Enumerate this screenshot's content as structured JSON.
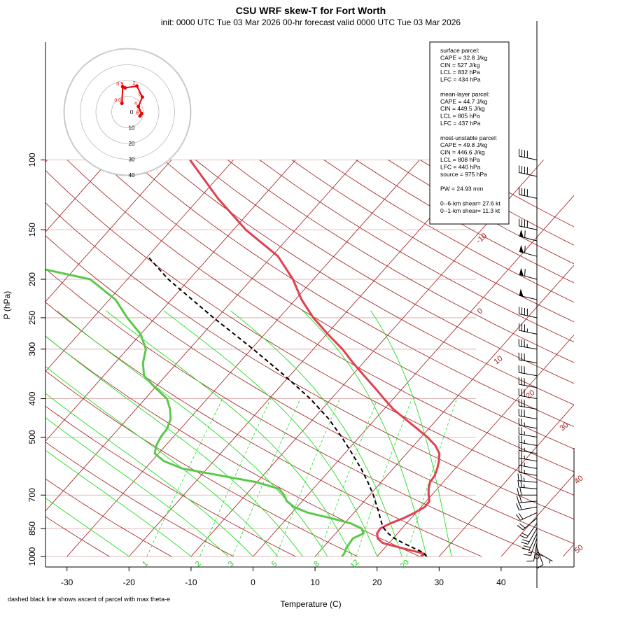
{
  "title": "CSU WRF skew-T for Fort Worth",
  "subtitle": "init: 0000 UTC Tue 03 Mar 2026    00-hr forecast valid 0000 UTC Tue 03 Mar 2026",
  "footnote": "dashed black line shows ascent of parcel with max theta-e",
  "colors": {
    "temperature": "#e0414f",
    "dewpoint": "#5ac94a",
    "parcel": "#000000",
    "isotherm": "#a01818",
    "dry_adiabat": "#a01818",
    "moist_adiabat": "#22dd22",
    "mixing_ratio": "#22dd22",
    "isobar": "#d8a0a0",
    "hodograph": "#ee0000"
  },
  "stats": {
    "surface": {
      "heading": "surface parcel:",
      "lines": [
        "CAPE = 32.8 J/kg",
        "CIN = 527 J/kg",
        "LCL = 832 hPa",
        "LFC = 434 hPa"
      ]
    },
    "mean_layer": {
      "heading": "mean-layer parcel:",
      "lines": [
        "CAPE = 44.7 J/kg",
        "CIN = 449.5 J/kg",
        "LCL = 805 hPa",
        "LFC = 437 hPa"
      ]
    },
    "most_unstable": {
      "heading": "most-unstable parcel:",
      "lines": [
        "CAPE = 49.8 J/kg",
        "CIN = 446.6 J/kg",
        "LCL = 808 hPa",
        "LFC = 440 hPa",
        "source = 975 hPa"
      ]
    },
    "pw": "PW =  24.93 mm",
    "shear": [
      "0--6-km shear= 27.6 kt",
      "0--1-km shear= 11.3 kt"
    ]
  },
  "chart_data": {
    "type": "line",
    "diagram": "skew-T log-p",
    "xlabel": "Temperature (C)",
    "ylabel": "P (hPa)",
    "x_ticks": [
      -30,
      -20,
      -10,
      0,
      10,
      20,
      30,
      40
    ],
    "y_ticks": [
      1000,
      850,
      700,
      500,
      400,
      300,
      250,
      200,
      150,
      100
    ],
    "isotherm_labels": [
      -10,
      0,
      10,
      20,
      30,
      40,
      50
    ],
    "mixing_ratio_labels": [
      1,
      2,
      3,
      5,
      8,
      12,
      20
    ],
    "hodograph": {
      "ring_labels": [
        10,
        20,
        30,
        40
      ],
      "center_label": "0",
      "points": [
        {
          "label": "0.5",
          "u": -3,
          "v": 16
        },
        {
          "label": "1",
          "u": -1.5,
          "v": 15.3
        },
        {
          "label": "2",
          "u": 6,
          "v": 16.5
        },
        {
          "label": "3",
          "u": 9.5,
          "v": 9.5
        },
        {
          "label": "4",
          "u": 7,
          "v": 3.5
        },
        {
          "label": "5",
          "u": 9,
          "v": -1
        },
        {
          "label": "6",
          "u": 8,
          "v": -2.5
        },
        {
          "label": "0.01",
          "u": -3.5,
          "v": 5.5
        }
      ]
    },
    "series": [
      {
        "name": "temperature",
        "points": [
          [
            1000,
            27
          ],
          [
            985,
            27.3
          ],
          [
            975,
            26
          ],
          [
            950,
            22.5
          ],
          [
            925,
            19
          ],
          [
            900,
            17.5
          ],
          [
            875,
            16.7
          ],
          [
            850,
            16.5
          ],
          [
            825,
            17.4
          ],
          [
            800,
            18.8
          ],
          [
            775,
            19.8
          ],
          [
            750,
            20.6
          ],
          [
            725,
            20.5
          ],
          [
            700,
            19.5
          ],
          [
            675,
            18.6
          ],
          [
            650,
            17.9
          ],
          [
            625,
            17.7
          ],
          [
            600,
            17.1
          ],
          [
            575,
            16.3
          ],
          [
            550,
            15.3
          ],
          [
            525,
            13.5
          ],
          [
            500,
            11
          ],
          [
            475,
            8
          ],
          [
            450,
            4.8
          ],
          [
            425,
            1.5
          ],
          [
            400,
            -1.5
          ],
          [
            375,
            -4.6
          ],
          [
            350,
            -8
          ],
          [
            325,
            -11.6
          ],
          [
            300,
            -15.3
          ],
          [
            275,
            -19.8
          ],
          [
            250,
            -24.5
          ],
          [
            225,
            -29
          ],
          [
            200,
            -33.3
          ],
          [
            175,
            -39
          ],
          [
            150,
            -48
          ],
          [
            125,
            -57
          ],
          [
            100,
            -67
          ]
        ]
      },
      {
        "name": "dewpoint",
        "points": [
          [
            1000,
            14.3
          ],
          [
            985,
            14.3
          ],
          [
            950,
            13.8
          ],
          [
            900,
            13.5
          ],
          [
            875,
            14.5
          ],
          [
            850,
            13.5
          ],
          [
            825,
            11
          ],
          [
            800,
            7
          ],
          [
            775,
            2.5
          ],
          [
            750,
            -0.5
          ],
          [
            725,
            -2.5
          ],
          [
            700,
            -3.8
          ],
          [
            675,
            -5.5
          ],
          [
            650,
            -10
          ],
          [
            600,
            -24
          ],
          [
            575,
            -28
          ],
          [
            550,
            -30.6
          ],
          [
            525,
            -31.5
          ],
          [
            500,
            -32
          ],
          [
            475,
            -32.2
          ],
          [
            450,
            -33
          ],
          [
            425,
            -34.5
          ],
          [
            400,
            -36.5
          ],
          [
            375,
            -40
          ],
          [
            350,
            -43.5
          ],
          [
            325,
            -45.5
          ],
          [
            300,
            -47
          ],
          [
            275,
            -50
          ],
          [
            250,
            -54.5
          ],
          [
            225,
            -59
          ],
          [
            200,
            -66
          ],
          [
            180,
            -82
          ],
          [
            160,
            -87
          ]
        ]
      },
      {
        "name": "parcel",
        "points": [
          [
            1000,
            28
          ],
          [
            975,
            26.7
          ],
          [
            950,
            24.5
          ],
          [
            925,
            22.3
          ],
          [
            900,
            20.2
          ],
          [
            875,
            18.5
          ],
          [
            850,
            17.1
          ],
          [
            825,
            16
          ],
          [
            800,
            15
          ],
          [
            775,
            14
          ],
          [
            750,
            12.9
          ],
          [
            700,
            10.6
          ],
          [
            650,
            7.9
          ],
          [
            600,
            4.8
          ],
          [
            550,
            1.2
          ],
          [
            500,
            -2.8
          ],
          [
            450,
            -7.5
          ],
          [
            400,
            -13.4
          ],
          [
            350,
            -20.8
          ],
          [
            300,
            -29.7
          ],
          [
            250,
            -40.6
          ],
          [
            200,
            -53.4
          ],
          [
            175,
            -60
          ]
        ]
      }
    ],
    "barbs": [
      {
        "p": 1000,
        "spd": 0,
        "dir": 0
      },
      {
        "p": 975,
        "spd": 6,
        "dir": 120
      },
      {
        "p": 950,
        "spd": 9,
        "dir": 160
      },
      {
        "p": 925,
        "spd": 12,
        "dir": 190
      },
      {
        "p": 900,
        "spd": 16,
        "dir": 200
      },
      {
        "p": 875,
        "spd": 18,
        "dir": 205
      },
      {
        "p": 850,
        "spd": 20,
        "dir": 210
      },
      {
        "p": 825,
        "spd": 20,
        "dir": 215
      },
      {
        "p": 800,
        "spd": 20,
        "dir": 230
      },
      {
        "p": 775,
        "spd": 20,
        "dir": 245
      },
      {
        "p": 750,
        "spd": 20,
        "dir": 260
      },
      {
        "p": 725,
        "spd": 20,
        "dir": 265
      },
      {
        "p": 700,
        "spd": 20,
        "dir": 270
      },
      {
        "p": 675,
        "spd": 25,
        "dir": 275
      },
      {
        "p": 650,
        "spd": 25,
        "dir": 275
      },
      {
        "p": 625,
        "spd": 25,
        "dir": 280
      },
      {
        "p": 600,
        "spd": 25,
        "dir": 280
      },
      {
        "p": 575,
        "spd": 25,
        "dir": 280
      },
      {
        "p": 550,
        "spd": 25,
        "dir": 280
      },
      {
        "p": 525,
        "spd": 25,
        "dir": 280
      },
      {
        "p": 500,
        "spd": 25,
        "dir": 280
      },
      {
        "p": 475,
        "spd": 25,
        "dir": 280
      },
      {
        "p": 450,
        "spd": 30,
        "dir": 280
      },
      {
        "p": 425,
        "spd": 30,
        "dir": 280
      },
      {
        "p": 400,
        "spd": 30,
        "dir": 280
      },
      {
        "p": 375,
        "spd": 30,
        "dir": 280
      },
      {
        "p": 350,
        "spd": 30,
        "dir": 280
      },
      {
        "p": 325,
        "spd": 30,
        "dir": 280
      },
      {
        "p": 300,
        "spd": 35,
        "dir": 280
      },
      {
        "p": 275,
        "spd": 35,
        "dir": 282
      },
      {
        "p": 250,
        "spd": 40,
        "dir": 282
      },
      {
        "p": 225,
        "spd": 50,
        "dir": 283
      },
      {
        "p": 200,
        "spd": 60,
        "dir": 285
      },
      {
        "p": 175,
        "spd": 60,
        "dir": 285
      },
      {
        "p": 160,
        "spd": 60,
        "dir": 285
      },
      {
        "p": 150,
        "spd": 40,
        "dir": 282
      },
      {
        "p": 125,
        "spd": 40,
        "dir": 282
      },
      {
        "p": 110,
        "spd": 40,
        "dir": 282
      },
      {
        "p": 100,
        "spd": 40,
        "dir": 282
      }
    ]
  }
}
